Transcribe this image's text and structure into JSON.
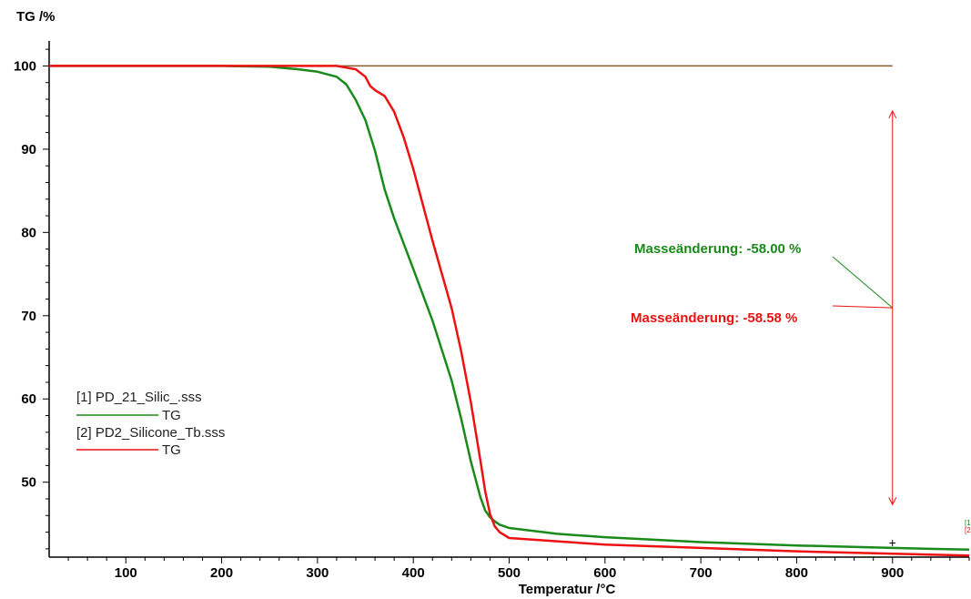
{
  "chart_data": {
    "type": "line",
    "ylabel": "TG /%",
    "xlabel": "Temperatur /°C",
    "xlim": [
      20,
      980
    ],
    "ylim": [
      41,
      103
    ],
    "xticks": [
      100,
      200,
      300,
      400,
      500,
      600,
      700,
      800,
      900
    ],
    "yticks": [
      50,
      60,
      70,
      80,
      90,
      100
    ],
    "grid": false,
    "legend_position": "left",
    "colors": {
      "green": "#1a8a1a",
      "red": "#ee1111",
      "brown": "#8b5a2b"
    },
    "series": [
      {
        "file": "[1] PD_21_Silic_.sss",
        "name": "TG",
        "color": "#1a8a1a",
        "x": [
          20,
          100,
          200,
          250,
          280,
          300,
          320,
          330,
          340,
          350,
          360,
          370,
          380,
          400,
          420,
          440,
          450,
          460,
          470,
          475,
          480,
          485,
          490,
          500,
          550,
          600,
          700,
          800,
          900,
          980
        ],
        "y": [
          100,
          100,
          100,
          99.9,
          99.6,
          99.3,
          98.7,
          97.8,
          95.9,
          93.5,
          89.8,
          85.2,
          81.7,
          75.6,
          69.4,
          62.2,
          57.6,
          52.5,
          48.2,
          46.6,
          45.8,
          45.3,
          44.9,
          44.5,
          43.8,
          43.4,
          42.8,
          42.4,
          42.1,
          41.9
        ]
      },
      {
        "file": "[2] PD2_Silicone_Tb.sss",
        "name": "TG",
        "color": "#ee1111",
        "x": [
          20,
          100,
          200,
          300,
          320,
          340,
          350,
          355,
          360,
          370,
          380,
          390,
          400,
          420,
          440,
          450,
          460,
          470,
          475,
          480,
          485,
          490,
          500,
          550,
          600,
          700,
          800,
          900,
          980
        ],
        "y": [
          100,
          100,
          100,
          100,
          100,
          99.6,
          98.7,
          97.6,
          97.1,
          96.4,
          94.5,
          91.4,
          87.6,
          79.0,
          70.9,
          65.7,
          59.6,
          52.6,
          48.9,
          46.2,
          44.7,
          44.0,
          43.3,
          42.9,
          42.5,
          42.1,
          41.7,
          41.4,
          41.2
        ]
      }
    ],
    "reference_line": {
      "y": 100,
      "x_end": 900,
      "color": "#8b5a2b"
    },
    "step_arrow": {
      "x": 900,
      "y_top": 94.6,
      "y_bottom": 47.3,
      "color": "#ee1111"
    },
    "annotations": [
      {
        "text": "Masseänderung: -58.00 %",
        "color": "#1a8a1a"
      },
      {
        "text": "Masseänderung: -58.58 %",
        "color": "#ee1111"
      }
    ],
    "end_markers": {
      "x": 900,
      "label": "+"
    }
  }
}
